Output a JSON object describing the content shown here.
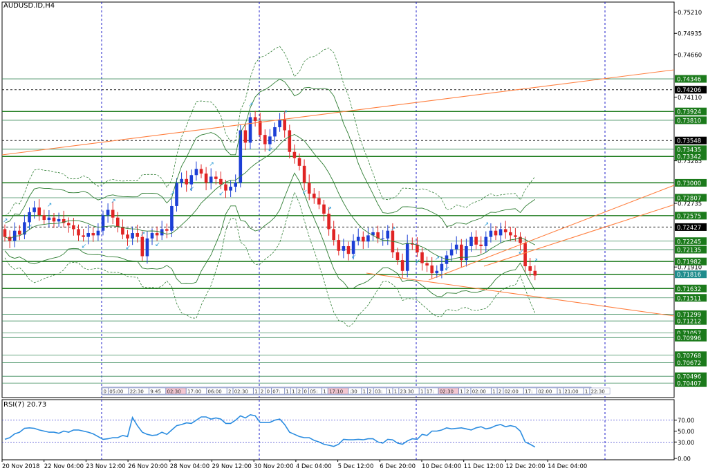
{
  "window": {
    "title": "AUDUSD.ID,H4"
  },
  "colors": {
    "bull": "#1c3fd6",
    "bear": "#e02424",
    "band": "#2e7d32",
    "trend": "#ff7f3f",
    "vgrid": "#1e1ec8",
    "rsi": "#2a8ce0",
    "level_green": "#1b7a1b",
    "level_teal": "#1f8c8c"
  },
  "price_axis": {
    "min": 0.7022,
    "max": 0.7534,
    "ticks": [
      "0.75210",
      "0.74935",
      "0.74660",
      "0.74110",
      "0.73285",
      "0.72735",
      "0.71910"
    ]
  },
  "price_labels": [
    {
      "value": 0.74346,
      "text": "0.74346",
      "style": "green"
    },
    {
      "value": 0.74206,
      "text": "0.74206",
      "style": "black"
    },
    {
      "value": 0.73924,
      "text": "0.73924",
      "style": "green"
    },
    {
      "value": 0.7381,
      "text": "0.73810",
      "style": "green"
    },
    {
      "value": 0.73548,
      "text": "0.73548",
      "style": "black"
    },
    {
      "value": 0.73435,
      "text": "0.73435",
      "style": "green"
    },
    {
      "value": 0.73342,
      "text": "0.73342",
      "style": "green"
    },
    {
      "value": 0.73,
      "text": "0.73000",
      "style": "green"
    },
    {
      "value": 0.72807,
      "text": "0.72807",
      "style": "green"
    },
    {
      "value": 0.72575,
      "text": "0.72575",
      "style": "green"
    },
    {
      "value": 0.72427,
      "text": "0.72427",
      "style": "black"
    },
    {
      "value": 0.72245,
      "text": "0.72245",
      "style": "green"
    },
    {
      "value": 0.72135,
      "text": "0.72135",
      "style": "green"
    },
    {
      "value": 0.71982,
      "text": "0.71982",
      "style": "green"
    },
    {
      "value": 0.71816,
      "text": "0.71816",
      "style": "green"
    },
    {
      "value": 0.71632,
      "text": "0.71632",
      "style": "green"
    },
    {
      "value": 0.71511,
      "text": "0.71511",
      "style": "green"
    },
    {
      "value": 0.71299,
      "text": "0.71299",
      "style": "green"
    },
    {
      "value": 0.71212,
      "text": "0.71212",
      "style": "green"
    },
    {
      "value": 0.71057,
      "text": "0.71057",
      "style": "green"
    },
    {
      "value": 0.70996,
      "text": "0.70996",
      "style": "green"
    },
    {
      "value": 0.70768,
      "text": "0.70768",
      "style": "green"
    },
    {
      "value": 0.70672,
      "text": "0.70672",
      "style": "green"
    },
    {
      "value": 0.70496,
      "text": "0.70496",
      "style": "green"
    },
    {
      "value": 0.70407,
      "text": "0.70407",
      "style": "green"
    }
  ],
  "time_axis": {
    "labels": [
      "20 Nov 2018",
      "22 Nov 04:00",
      "23 Nov 12:00",
      "26 Nov 20:00",
      "28 Nov 04:00",
      "29 Nov 12:00",
      "30 Nov 20:00",
      "4 Dec 04:00",
      "5 Dec 12:00",
      "6 Dec 20:00",
      "10 Dec 04:00",
      "11 Dec 12:00",
      "12 Dec 20:00",
      "14 Dec 04:00"
    ]
  },
  "session_strip": {
    "items": [
      "0",
      "05:00",
      "22:30",
      "9:45",
      "02:30",
      "17:00",
      "06:00",
      "2",
      "02:30",
      "1",
      "2",
      "0",
      "07:",
      "1",
      "1",
      "2",
      "0",
      "05:",
      "1",
      "17:10",
      ":30",
      "1",
      "2",
      "03:",
      "1",
      "1",
      "23:30",
      "1",
      "17:",
      "02:30",
      "1",
      "2",
      "02:00",
      "1",
      "2",
      "02:00",
      "17:",
      "02:00",
      "1",
      "21:00",
      "1",
      "22:30"
    ]
  },
  "rsi": {
    "label": "RSI(7) 20.73",
    "ticks": [
      "70.00",
      "50.00",
      "30.00",
      "0.00"
    ],
    "levels": [
      70,
      30
    ]
  },
  "chart_data": {
    "type": "candlestick",
    "title": "AUDUSD.ID,H4",
    "xlabel": "",
    "ylabel": "",
    "ylim": [
      0.7022,
      0.7534
    ],
    "grid": false,
    "closes": [
      0.723,
      0.7225,
      0.7238,
      0.7233,
      0.7249,
      0.7262,
      0.7268,
      0.7258,
      0.7252,
      0.7255,
      0.725,
      0.7253,
      0.7248,
      0.7245,
      0.724,
      0.7232,
      0.723,
      0.7235,
      0.7232,
      0.7238,
      0.7258,
      0.7265,
      0.7255,
      0.7243,
      0.7233,
      0.7228,
      0.7235,
      0.723,
      0.7205,
      0.7228,
      0.7235,
      0.7232,
      0.724,
      0.7238,
      0.727,
      0.73,
      0.7305,
      0.7298,
      0.731,
      0.7318,
      0.7312,
      0.73,
      0.7308,
      0.7305,
      0.7298,
      0.729,
      0.7295,
      0.73,
      0.7368,
      0.7352,
      0.7385,
      0.738,
      0.7362,
      0.735,
      0.736,
      0.7372,
      0.7382,
      0.7368,
      0.734,
      0.7332,
      0.7322,
      0.73,
      0.7286,
      0.728,
      0.7272,
      0.726,
      0.724,
      0.7226,
      0.7212,
      0.7218,
      0.7208,
      0.7225,
      0.723,
      0.7224,
      0.7232,
      0.7236,
      0.7228,
      0.7228,
      0.7238,
      0.721,
      0.72,
      0.7186,
      0.7222,
      0.722,
      0.721,
      0.7196,
      0.7193,
      0.7183,
      0.7186,
      0.7195,
      0.7206,
      0.7214,
      0.722,
      0.72,
      0.7218,
      0.723,
      0.722,
      0.7218,
      0.723,
      0.7238,
      0.7232,
      0.724,
      0.7236,
      0.7232,
      0.723,
      0.7222,
      0.7192,
      0.7186,
      0.718
    ],
    "rsi_values": [
      35,
      38,
      45,
      48,
      55,
      56,
      55,
      52,
      50,
      48,
      48,
      46,
      50,
      48,
      52,
      52,
      50,
      48,
      45,
      40,
      35,
      36,
      38,
      38,
      42,
      40,
      75,
      60,
      48,
      44,
      42,
      43,
      48,
      44,
      52,
      60,
      62,
      65,
      64,
      70,
      76,
      76,
      72,
      74,
      72,
      64,
      64,
      70,
      78,
      74,
      80,
      78,
      66,
      66,
      66,
      70,
      72,
      62,
      48,
      44,
      40,
      38,
      38,
      33,
      30,
      26,
      24,
      22,
      26,
      35,
      34,
      34,
      35,
      34,
      36,
      36,
      30,
      28,
      35,
      34,
      28,
      26,
      32,
      36,
      35,
      44,
      42,
      50,
      50,
      52,
      56,
      54,
      55,
      56,
      54,
      52,
      56,
      58,
      54,
      56,
      60,
      62,
      58,
      60,
      58,
      50,
      30,
      26,
      20.73
    ]
  }
}
